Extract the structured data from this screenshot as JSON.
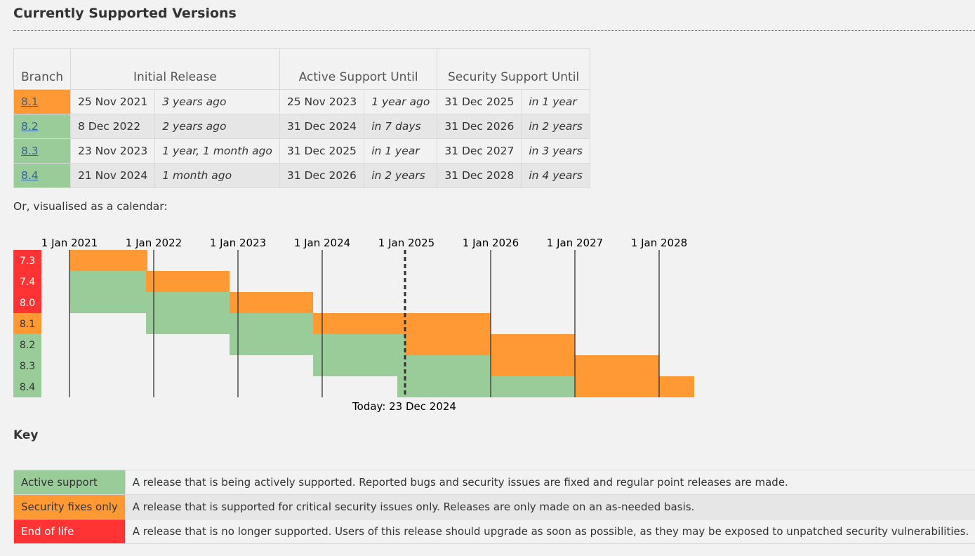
{
  "page": {
    "title": "Currently Supported Versions",
    "calendar_intro": "Or, visualised as a calendar:",
    "key_title": "Key"
  },
  "versions_table": {
    "headers": {
      "branch": "Branch",
      "initial_release": "Initial Release",
      "active_support": "Active Support Until",
      "security_support": "Security Support Until"
    },
    "rows": [
      {
        "branch": "8.1",
        "state": "security",
        "release_date": "25 Nov 2021",
        "release_ago": "3 years ago",
        "active_date": "25 Nov 2023",
        "active_rel": "1 year ago",
        "security_date": "31 Dec 2025",
        "security_rel": "in 1 year"
      },
      {
        "branch": "8.2",
        "state": "active",
        "release_date": "8 Dec 2022",
        "release_ago": "2 years ago",
        "active_date": "31 Dec 2024",
        "active_rel": "in 7 days",
        "security_date": "31 Dec 2026",
        "security_rel": "in 2 years"
      },
      {
        "branch": "8.3",
        "state": "active",
        "release_date": "23 Nov 2023",
        "release_ago": "1 year, 1 month ago",
        "active_date": "31 Dec 2025",
        "active_rel": "in 1 year",
        "security_date": "31 Dec 2027",
        "security_rel": "in 3 years"
      },
      {
        "branch": "8.4",
        "state": "active",
        "release_date": "21 Nov 2024",
        "release_ago": "1 month ago",
        "active_date": "31 Dec 2026",
        "active_rel": "in 2 years",
        "security_date": "31 Dec 2028",
        "security_rel": "in 4 years"
      }
    ]
  },
  "calendar": {
    "year_labels": [
      "1 Jan 2021",
      "1 Jan 2022",
      "1 Jan 2023",
      "1 Jan 2024",
      "1 Jan 2025",
      "1 Jan 2026",
      "1 Jan 2027",
      "1 Jan 2028"
    ],
    "today_label": "Today: 23 Dec 2024",
    "branches": [
      {
        "name": "7.3",
        "state": "eol"
      },
      {
        "name": "7.4",
        "state": "eol"
      },
      {
        "name": "8.0",
        "state": "eol"
      },
      {
        "name": "8.1",
        "state": "security"
      },
      {
        "name": "8.2",
        "state": "active"
      },
      {
        "name": "8.3",
        "state": "active"
      },
      {
        "name": "8.4",
        "state": "active"
      }
    ]
  },
  "key": {
    "rows": [
      {
        "label": "Active support",
        "state": "active",
        "description": "A release that is being actively supported. Reported bugs and security issues are fixed and regular point releases are made."
      },
      {
        "label": "Security fixes only",
        "state": "security",
        "description": "A release that is supported for critical security issues only. Releases are only made on an as-needed basis."
      },
      {
        "label": "End of life",
        "state": "eol",
        "description": "A release that is no longer supported. Users of this release should upgrade as soon as possible, as they may be exposed to unpatched security vulnerabilities."
      }
    ]
  },
  "colors": {
    "active": "#99cc99",
    "security": "#ff9933",
    "eol": "#ff3333",
    "link": "#336699"
  }
}
